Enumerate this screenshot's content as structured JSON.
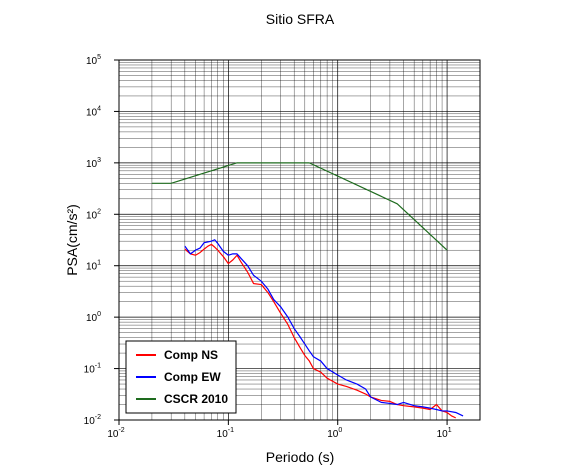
{
  "chart_data": {
    "type": "line",
    "title": "Sitio SFRA",
    "xlabel": "Periodo (s)",
    "ylabel": "PSA(cm/s²)",
    "xscale": "log",
    "yscale": "log",
    "xlim": [
      0.01,
      20
    ],
    "ylim": [
      0.01,
      100000
    ],
    "grid": true,
    "legend_position": "bottom-left",
    "x_ticks": [
      {
        "base": "10",
        "exp": "-2",
        "value": 0.01
      },
      {
        "base": "10",
        "exp": "-1",
        "value": 0.1
      },
      {
        "base": "10",
        "exp": "0",
        "value": 1
      },
      {
        "base": "10",
        "exp": "1",
        "value": 10
      }
    ],
    "y_ticks": [
      {
        "base": "10",
        "exp": "-2",
        "value": 0.01
      },
      {
        "base": "10",
        "exp": "-1",
        "value": 0.1
      },
      {
        "base": "10",
        "exp": "0",
        "value": 1
      },
      {
        "base": "10",
        "exp": "1",
        "value": 10
      },
      {
        "base": "10",
        "exp": "2",
        "value": 100
      },
      {
        "base": "10",
        "exp": "3",
        "value": 1000
      },
      {
        "base": "10",
        "exp": "4",
        "value": 10000
      },
      {
        "base": "10",
        "exp": "5",
        "value": 100000
      }
    ],
    "series": [
      {
        "name": "Comp NS",
        "color": "#ff0000",
        "x": [
          0.04,
          0.045,
          0.05,
          0.055,
          0.06,
          0.065,
          0.07,
          0.075,
          0.08,
          0.09,
          0.1,
          0.11,
          0.12,
          0.13,
          0.15,
          0.17,
          0.2,
          0.23,
          0.26,
          0.3,
          0.35,
          0.4,
          0.45,
          0.5,
          0.55,
          0.6,
          0.7,
          0.8,
          1.0,
          1.2,
          1.5,
          1.8,
          2.0,
          2.5,
          3.0,
          3.5,
          4.0,
          5.0,
          6.0,
          7.0,
          8.0,
          9.0,
          10.0,
          11.0,
          12.0
        ],
        "y": [
          21,
          17,
          16,
          18,
          21,
          24,
          26,
          23,
          20,
          15,
          11,
          13,
          16,
          12,
          7.5,
          4.5,
          4.3,
          3.0,
          2.0,
          1.2,
          0.72,
          0.4,
          0.26,
          0.18,
          0.14,
          0.1,
          0.085,
          0.065,
          0.05,
          0.045,
          0.038,
          0.032,
          0.028,
          0.024,
          0.023,
          0.02,
          0.019,
          0.018,
          0.017,
          0.016,
          0.02,
          0.015,
          0.014,
          0.012,
          0.011
        ]
      },
      {
        "name": "Comp EW",
        "color": "#0000ff",
        "x": [
          0.04,
          0.045,
          0.05,
          0.055,
          0.06,
          0.065,
          0.07,
          0.075,
          0.08,
          0.09,
          0.1,
          0.11,
          0.12,
          0.13,
          0.15,
          0.17,
          0.2,
          0.23,
          0.26,
          0.3,
          0.35,
          0.4,
          0.45,
          0.5,
          0.55,
          0.6,
          0.7,
          0.8,
          1.0,
          1.2,
          1.5,
          1.8,
          2.0,
          2.5,
          3.0,
          3.5,
          4.0,
          5.0,
          6.0,
          7.0,
          8.0,
          9.0,
          10.0,
          12.0,
          14.0
        ],
        "y": [
          24,
          17,
          20,
          22,
          28,
          29,
          30,
          32,
          27,
          19,
          16,
          17,
          17,
          14,
          10,
          6.5,
          5.0,
          3.5,
          2.2,
          1.6,
          1.0,
          0.6,
          0.42,
          0.3,
          0.22,
          0.17,
          0.14,
          0.1,
          0.075,
          0.06,
          0.05,
          0.04,
          0.028,
          0.022,
          0.021,
          0.02,
          0.022,
          0.019,
          0.018,
          0.017,
          0.016,
          0.015,
          0.015,
          0.014,
          0.012
        ]
      },
      {
        "name": "CSCR 2010",
        "color": "#1e6b1e",
        "x": [
          0.02,
          0.03,
          0.12,
          0.55,
          3.5,
          10.0
        ],
        "y": [
          400,
          400,
          1000,
          1000,
          160,
          20
        ]
      }
    ]
  }
}
